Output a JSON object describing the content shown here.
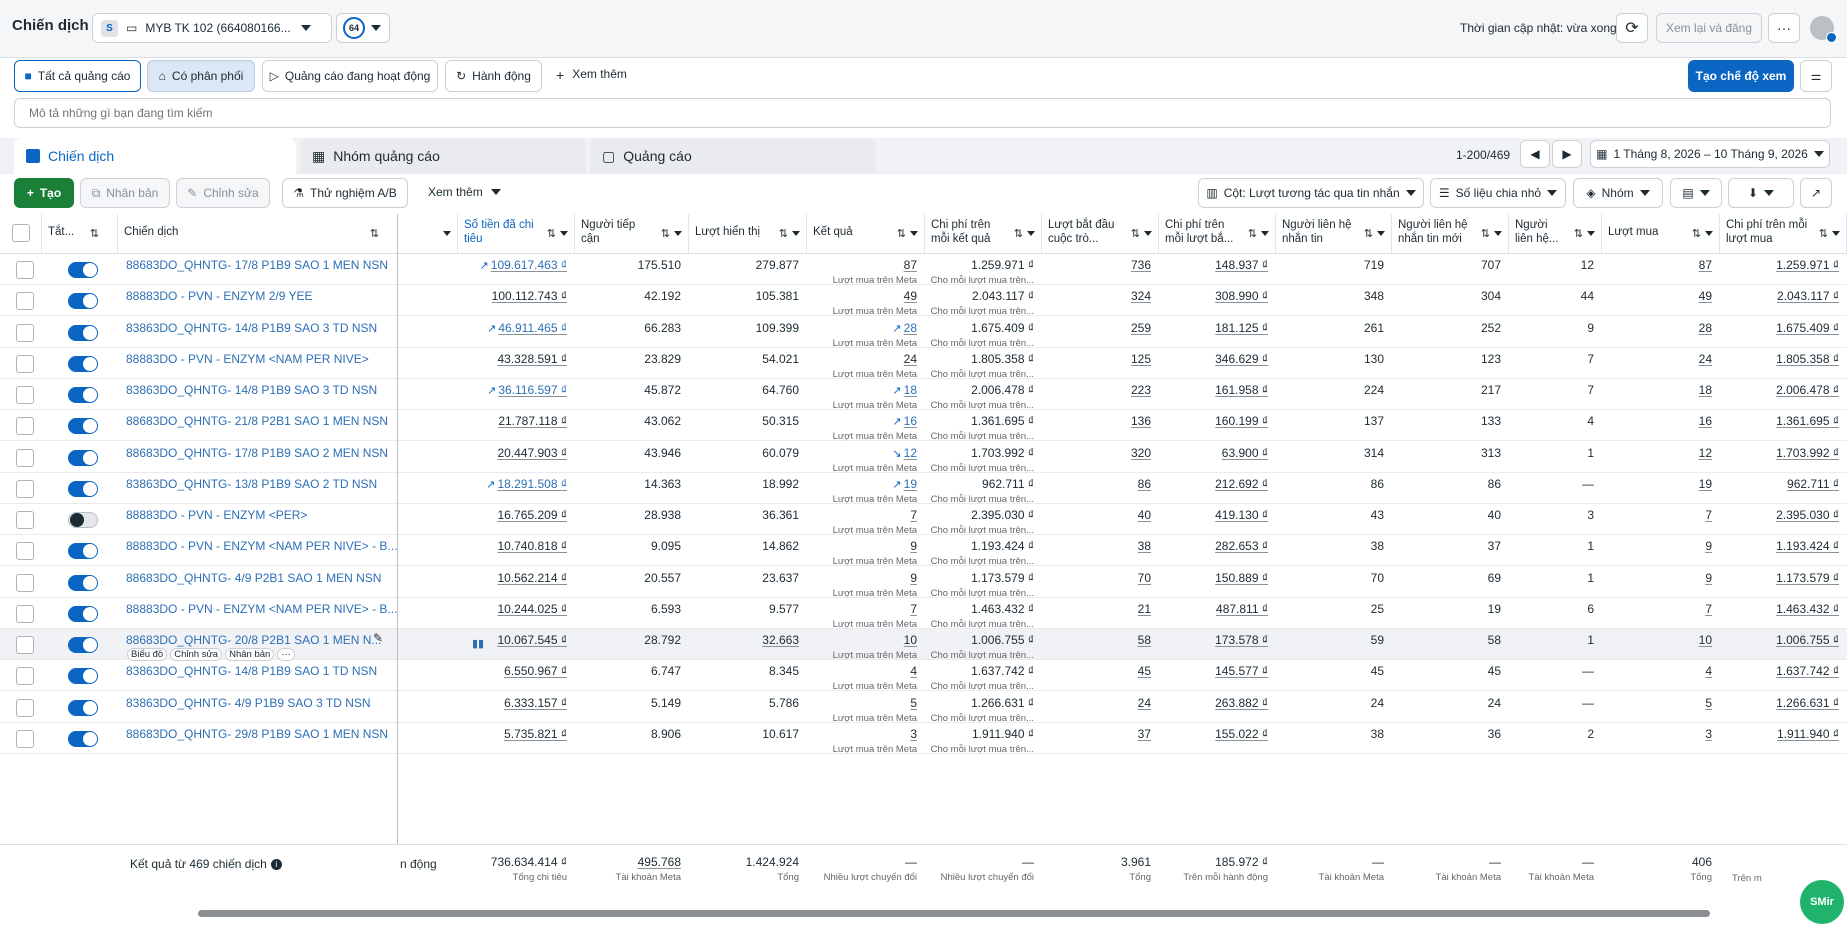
{
  "header": {
    "title": "Chiến dịch",
    "account_badge": "S",
    "account_name": "MYB TK 102 (664080166...",
    "count_badge": "64",
    "update_text": "Thời gian cập nhật: vừa xong",
    "review_button": "Xem lại và đăng"
  },
  "filters": {
    "all_ads": "Tất cả quảng cáo",
    "delivered": "Có phân phối",
    "active_ads": "Quảng cáo đang hoạt động",
    "actions": "Hành động",
    "see_more": "Xem thêm",
    "create_view": "Tạo chế độ xem"
  },
  "search": {
    "placeholder": "Mô tả những gì bạn đang tìm kiếm"
  },
  "tabs": {
    "campaigns": "Chiến dịch",
    "ad_sets": "Nhóm quảng cáo",
    "ads": "Quảng cáo",
    "pagination": "1-200/469",
    "date_range": "1 Tháng 8, 2026 – 10 Tháng 9, 2026"
  },
  "toolbar": {
    "create": "Tạo",
    "duplicate": "Nhân bản",
    "edit": "Chỉnh sửa",
    "ab_test": "Thử nghiệm A/B",
    "see_more": "Xem thêm",
    "columns": "Cột: Lượt tương tác qua tin nhắn",
    "breakdown": "Số liệu chia nhỏ",
    "group": "Nhóm"
  },
  "columns": {
    "toggle": "Tắt...",
    "campaign": "Chiến dịch",
    "spent": "Số tiền đã chi tiêu",
    "reach": "Người tiếp cận",
    "impressions": "Lượt hiển thị",
    "results": "Kết quả",
    "cost_per_result": "Chi phí trên mỗi kết quả",
    "conv_started": "Lượt bắt đầu cuộc trò...",
    "cost_per_conv": "Chi phí trên mỗi lượt bắ...",
    "msg_contacts": "Người liên hệ nhắn tin",
    "new_msg_contacts": "Người liên hệ nhắn tin mới",
    "returning": "Người liên hệ...",
    "purchases": "Lượt mua",
    "cost_per_purchase": "Chi phí trên mỗi lượt mua"
  },
  "labels": {
    "result_sub": "Lượt mua trên Meta",
    "cpr_sub": "Cho mỗi lượt mua trên...",
    "row_chart": "Biểu đồ",
    "row_edit": "Chỉnh sửa",
    "row_dup": "Nhân bản"
  },
  "rows": [
    {
      "name": "88683DO_QHNTG- 17/8 P1B9 SAO 1 MEN NSN",
      "on": true,
      "trend": "up",
      "spent": "109.617.463 ₫",
      "reach": "175.510",
      "impr": "279.877",
      "res": "87",
      "rtrend": "",
      "cpr": "1.259.971 ₫",
      "conv": "736",
      "cpc": "148.937 ₫",
      "c1": "719",
      "c2": "707",
      "c3": "12",
      "pur": "87",
      "cpp": "1.259.971 ₫"
    },
    {
      "name": "88883DO - PVN - ENZYM 2/9 YEE",
      "on": true,
      "trend": "",
      "spent": "100.112.743 ₫",
      "reach": "42.192",
      "impr": "105.381",
      "res": "49",
      "rtrend": "",
      "cpr": "2.043.117 ₫",
      "conv": "324",
      "cpc": "308.990 ₫",
      "c1": "348",
      "c2": "304",
      "c3": "44",
      "pur": "49",
      "cpp": "2.043.117 ₫"
    },
    {
      "name": "83863DO_QHNTG- 14/8 P1B9 SAO 3 TD NSN",
      "on": true,
      "trend": "up",
      "spent": "46.911.465 ₫",
      "reach": "66.283",
      "impr": "109.399",
      "res": "28",
      "rtrend": "up",
      "cpr": "1.675.409 ₫",
      "conv": "259",
      "cpc": "181.125 ₫",
      "c1": "261",
      "c2": "252",
      "c3": "9",
      "pur": "28",
      "cpp": "1.675.409 ₫"
    },
    {
      "name": "88883DO - PVN - ENZYM <NAM PER NIVE>",
      "on": true,
      "trend": "",
      "spent": "43.328.591 ₫",
      "reach": "23.829",
      "impr": "54.021",
      "res": "24",
      "rtrend": "",
      "cpr": "1.805.358 ₫",
      "conv": "125",
      "cpc": "346.629 ₫",
      "c1": "130",
      "c2": "123",
      "c3": "7",
      "pur": "24",
      "cpp": "1.805.358 ₫"
    },
    {
      "name": "83863DO_QHNTG- 14/8 P1B9 SAO 3 TD NSN",
      "on": true,
      "trend": "up",
      "spent": "36.116.597 ₫",
      "reach": "45.872",
      "impr": "64.760",
      "res": "18",
      "rtrend": "up",
      "cpr": "2.006.478 ₫",
      "conv": "223",
      "cpc": "161.958 ₫",
      "c1": "224",
      "c2": "217",
      "c3": "7",
      "pur": "18",
      "cpp": "2.006.478 ₫"
    },
    {
      "name": "88683DO_QHNTG- 21/8 P2B1 SAO 1 MEN NSN",
      "on": true,
      "trend": "",
      "spent": "21.787.118 ₫",
      "reach": "43.062",
      "impr": "50.315",
      "res": "16",
      "rtrend": "up",
      "cpr": "1.361.695 ₫",
      "conv": "136",
      "cpc": "160.199 ₫",
      "c1": "137",
      "c2": "133",
      "c3": "4",
      "pur": "16",
      "cpp": "1.361.695 ₫"
    },
    {
      "name": "88683DO_QHNTG- 17/8 P1B9 SAO 2 MEN NSN",
      "on": true,
      "trend": "",
      "spent": "20.447.903 ₫",
      "reach": "43.946",
      "impr": "60.079",
      "res": "12",
      "rtrend": "down",
      "cpr": "1.703.992 ₫",
      "conv": "320",
      "cpc": "63.900 ₫",
      "c1": "314",
      "c2": "313",
      "c3": "1",
      "pur": "12",
      "cpp": "1.703.992 ₫"
    },
    {
      "name": "83863DO_QHNTG- 13/8 P1B9 SAO 2 TD NSN",
      "on": true,
      "trend": "up",
      "spent": "18.291.508 ₫",
      "reach": "14.363",
      "impr": "18.992",
      "res": "19",
      "rtrend": "up",
      "cpr": "962.711 ₫",
      "conv": "86",
      "cpc": "212.692 ₫",
      "c1": "86",
      "c2": "86",
      "c3": "—",
      "pur": "19",
      "cpp": "962.711 ₫"
    },
    {
      "name": "88883DO - PVN - ENZYM <PER>",
      "on": false,
      "trend": "",
      "spent": "16.765.209 ₫",
      "reach": "28.938",
      "impr": "36.361",
      "res": "7",
      "rtrend": "",
      "cpr": "2.395.030 ₫",
      "conv": "40",
      "cpc": "419.130 ₫",
      "c1": "43",
      "c2": "40",
      "c3": "3",
      "pur": "7",
      "cpp": "2.395.030 ₫"
    },
    {
      "name": "88883DO - PVN - ENZYM <NAM PER NIVE> - B...",
      "on": true,
      "trend": "",
      "spent": "10.740.818 ₫",
      "reach": "9.095",
      "impr": "14.862",
      "res": "9",
      "rtrend": "",
      "cpr": "1.193.424 ₫",
      "conv": "38",
      "cpc": "282.653 ₫",
      "c1": "38",
      "c2": "37",
      "c3": "1",
      "pur": "9",
      "cpp": "1.193.424 ₫"
    },
    {
      "name": "88683DO_QHNTG- 4/9 P2B1 SAO 1 MEN NSN",
      "on": true,
      "trend": "",
      "spent": "10.562.214 ₫",
      "reach": "20.557",
      "impr": "23.637",
      "res": "9",
      "rtrend": "",
      "cpr": "1.173.579 ₫",
      "conv": "70",
      "cpc": "150.889 ₫",
      "c1": "70",
      "c2": "69",
      "c3": "1",
      "pur": "9",
      "cpp": "1.173.579 ₫"
    },
    {
      "name": "88883DO - PVN - ENZYM <NAM PER NIVE> - B...",
      "on": true,
      "trend": "",
      "spent": "10.244.025 ₫",
      "reach": "6.593",
      "impr": "9.577",
      "res": "7",
      "rtrend": "",
      "cpr": "1.463.432 ₫",
      "conv": "21",
      "cpc": "487.811 ₫",
      "c1": "25",
      "c2": "19",
      "c3": "6",
      "pur": "7",
      "cpp": "1.463.432 ₫"
    },
    {
      "name": "88683DO_QHNTG- 20/8 P2B1 SAO 1 MEN N...",
      "on": true,
      "trend": "",
      "spent": "10.067.545 ₫",
      "reach": "28.792",
      "impr": "32.663",
      "res": "10",
      "rtrend": "",
      "cpr": "1.006.755 ₫",
      "conv": "58",
      "cpc": "173.578 ₫",
      "c1": "59",
      "c2": "58",
      "c3": "1",
      "pur": "10",
      "cpp": "1.006.755 ₫",
      "hover": true
    },
    {
      "name": "83863DO_QHNTG- 14/8 P1B9 SAO 1 TD NSN",
      "on": true,
      "trend": "",
      "spent": "6.550.967 ₫",
      "reach": "6.747",
      "impr": "8.345",
      "res": "4",
      "rtrend": "",
      "cpr": "1.637.742 ₫",
      "conv": "45",
      "cpc": "145.577 ₫",
      "c1": "45",
      "c2": "45",
      "c3": "—",
      "pur": "4",
      "cpp": "1.637.742 ₫"
    },
    {
      "name": "83863DO_QHNTG- 4/9 P1B9 SAO 3 TD NSN",
      "on": true,
      "trend": "",
      "spent": "6.333.157 ₫",
      "reach": "5.149",
      "impr": "5.786",
      "res": "5",
      "rtrend": "",
      "cpr": "1.266.631 ₫",
      "conv": "24",
      "cpc": "263.882 ₫",
      "c1": "24",
      "c2": "24",
      "c3": "—",
      "pur": "5",
      "cpp": "1.266.631 ₫"
    },
    {
      "name": "88683DO_QHNTG- 29/8 P1B9 SAO 1 MEN NSN",
      "on": true,
      "trend": "",
      "spent": "5.735.821 ₫",
      "reach": "8.906",
      "impr": "10.617",
      "res": "3",
      "rtrend": "",
      "cpr": "1.911.940 ₫",
      "conv": "37",
      "cpc": "155.022 ₫",
      "c1": "38",
      "c2": "36",
      "c3": "2",
      "pur": "3",
      "cpp": "1.911.940 ₫"
    }
  ],
  "footer": {
    "label": "Kết quả từ 469 chiến dịch",
    "frag": "n động",
    "spent": "736.634.414 ₫",
    "spent_sub": "Tổng chi tiêu",
    "reach": "495.768",
    "reach_sub": "Tài khoản Meta",
    "impr": "1.424.924",
    "impr_sub": "Tổng",
    "res": "—",
    "res_sub": "Nhiều lượt chuyển đổi",
    "cpr": "—",
    "cpr_sub": "Nhiều lượt chuyển đổi",
    "conv": "3.961",
    "conv_sub": "Tổng",
    "cpc": "185.972 ₫",
    "cpc_sub": "Trên mỗi hành động",
    "c1": "—",
    "c1_sub": "Tài khoản Meta",
    "c2": "—",
    "c2_sub": "Tài khoản Meta",
    "c3": "—",
    "c3_sub": "Tài khoản Meta",
    "pur": "406",
    "pur_sub": "Tổng",
    "cpp_sub": "Trên m"
  },
  "widget": {
    "label": "SMir"
  }
}
